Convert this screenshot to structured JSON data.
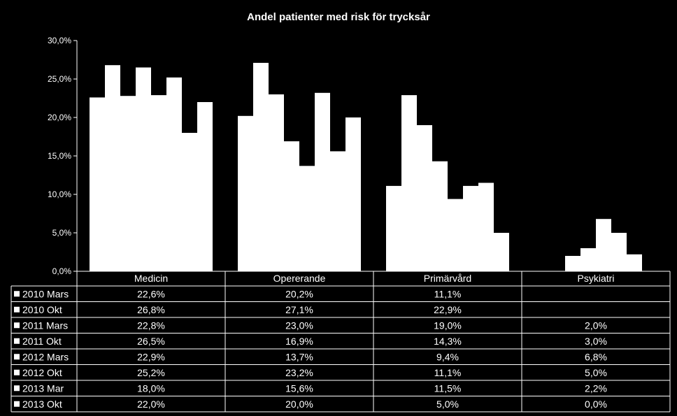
{
  "chart_data": {
    "type": "bar",
    "title": "Andel patienter med risk för trycksår",
    "categories": [
      "Medicin",
      "Opererande",
      "Primärvård",
      "Psykiatri"
    ],
    "ylim": [
      0,
      30
    ],
    "yticks": [
      "0,0%",
      "5,0%",
      "10,0%",
      "15,0%",
      "20,0%",
      "25,0%",
      "30,0%"
    ],
    "grid": false,
    "legend": "data-table",
    "bar_color": "#ffffff",
    "series": [
      {
        "name": "2010 Mars",
        "values": [
          22.6,
          20.2,
          11.1,
          null
        ],
        "labels": [
          "22,6%",
          "20,2%",
          "11,1%",
          ""
        ]
      },
      {
        "name": "2010 Okt",
        "values": [
          26.8,
          27.1,
          22.9,
          null
        ],
        "labels": [
          "26,8%",
          "27,1%",
          "22,9%",
          ""
        ]
      },
      {
        "name": "2011 Mars",
        "values": [
          22.8,
          23.0,
          19.0,
          2.0
        ],
        "labels": [
          "22,8%",
          "23,0%",
          "19,0%",
          "2,0%"
        ]
      },
      {
        "name": "2011 Okt",
        "values": [
          26.5,
          16.9,
          14.3,
          3.0
        ],
        "labels": [
          "26,5%",
          "16,9%",
          "14,3%",
          "3,0%"
        ]
      },
      {
        "name": "2012 Mars",
        "values": [
          22.9,
          13.7,
          9.4,
          6.8
        ],
        "labels": [
          "22,9%",
          "13,7%",
          "9,4%",
          "6,8%"
        ]
      },
      {
        "name": "2012 Okt",
        "values": [
          25.2,
          23.2,
          11.1,
          5.0
        ],
        "labels": [
          "25,2%",
          "23,2%",
          "11,1%",
          "5,0%"
        ]
      },
      {
        "name": "2013 Mar",
        "values": [
          18.0,
          15.6,
          11.5,
          2.2
        ],
        "labels": [
          "18,0%",
          "15,6%",
          "11,5%",
          "2,2%"
        ]
      },
      {
        "name": "2013 Okt",
        "values": [
          22.0,
          20.0,
          5.0,
          0.0
        ],
        "labels": [
          "22,0%",
          "20,0%",
          "5,0%",
          "0,0%"
        ]
      }
    ]
  }
}
